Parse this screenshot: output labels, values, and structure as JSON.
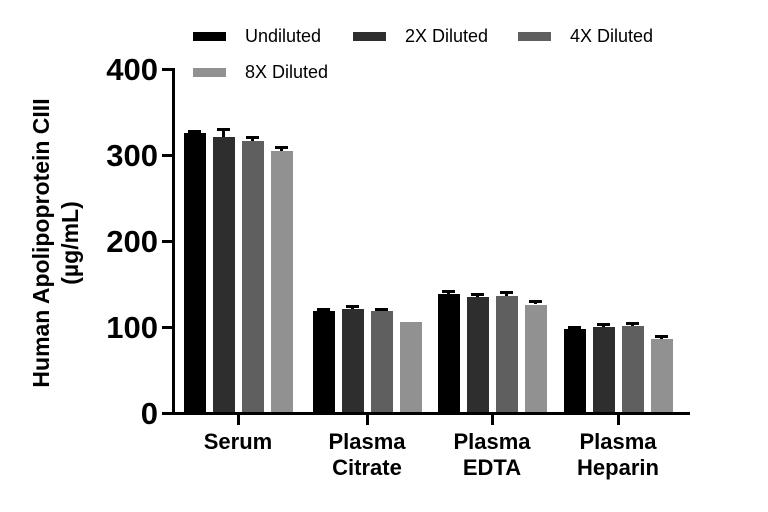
{
  "chart_data": {
    "type": "bar",
    "title": "",
    "xlabel": "",
    "ylabel": "Human Apolipoprotein CIII (µg/mL)",
    "ylabel_lines": [
      "Human Apolipoprotein CIII",
      "(µg/mL)"
    ],
    "ylim": [
      0,
      400
    ],
    "yticks": [
      0,
      100,
      200,
      300,
      400
    ],
    "grid": false,
    "legend_position": "top",
    "categories": [
      "Serum",
      "Plasma Citrate",
      "Plasma EDTA",
      "Plasma Heparin"
    ],
    "series": [
      {
        "name": "Undiluted",
        "color": "#000000",
        "values": [
          324,
          117,
          137,
          97
        ],
        "errors": [
          3,
          3,
          4,
          2
        ]
      },
      {
        "name": "2X Diluted",
        "color": "#2e2e2e",
        "values": [
          320,
          120,
          134,
          99
        ],
        "errors": [
          9,
          3,
          3,
          3
        ]
      },
      {
        "name": "4X Diluted",
        "color": "#5f5f5f",
        "values": [
          315,
          117,
          135,
          100
        ],
        "errors": [
          5,
          3,
          5,
          3
        ]
      },
      {
        "name": "8X Diluted",
        "color": "#919191",
        "values": [
          304,
          105,
          125,
          85
        ],
        "errors": [
          4,
          0,
          4,
          3
        ]
      }
    ]
  },
  "colors": {
    "axis": "#000000",
    "background": "#ffffff"
  }
}
